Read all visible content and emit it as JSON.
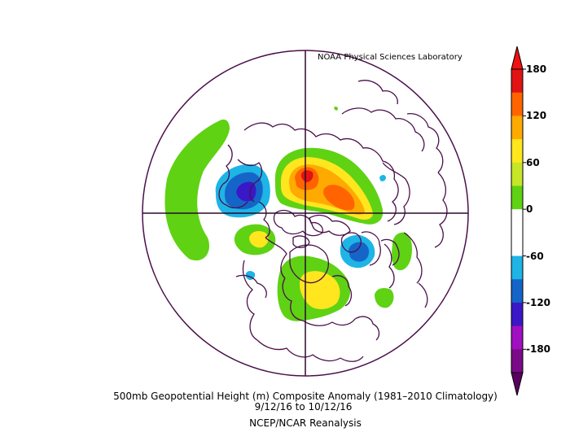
{
  "credit": "NOAA Physical Sciences Laboratory",
  "caption": {
    "line1": "500mb Geopotential Height (m) Composite Anomaly (1981–2010 Climatology)",
    "line2": "9/12/16   to 10/12/16",
    "line3": "NCEP/NCAR Reanalysis"
  },
  "colorbar": {
    "ticks": [
      "180",
      "120",
      "60",
      "0",
      "-60",
      "-120",
      "-180"
    ],
    "segments": [
      "#7a0a87",
      "#a010c0",
      "#3a18c8",
      "#1565c8",
      "#1eb4e6",
      "#ffffff",
      "#ffffff",
      "#5fd214",
      "#c6e628",
      "#ffe61e",
      "#ffaa00",
      "#ff6400",
      "#e01414"
    ]
  },
  "projection": "polar-stereographic",
  "anomaly_colors": {
    "strong_negative": "#3a18c8",
    "negative": "#1565c8",
    "weak_negative": "#1eb4e6",
    "weak_positive": "#5fd214",
    "moderate_positive": "#ffe61e",
    "positive": "#ffaa00",
    "strong_positive": "#ff6400",
    "very_strong_positive": "#e01414"
  },
  "coastline_color": "#4a0f4a"
}
